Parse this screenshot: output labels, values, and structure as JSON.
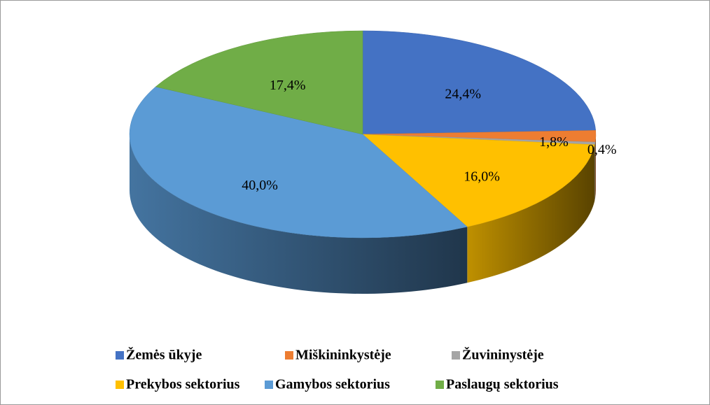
{
  "chart_data": {
    "type": "pie",
    "categories": [
      "Žemės ūkyje",
      "Miškininkystėje",
      "Žuvininystėje",
      "Prekybos sektorius",
      "Gamybos sektorius",
      "Paslaugų sektorius"
    ],
    "values": [
      24.4,
      1.8,
      0.4,
      16.0,
      40.0,
      17.4
    ],
    "value_labels": [
      "24,4%",
      "1,8%",
      "0,4%",
      "16,0%",
      "40,0%",
      "17,4%"
    ],
    "colors": [
      "#4472c4",
      "#ed7d31",
      "#a5a5a5",
      "#ffc000",
      "#5b9bd5",
      "#70ad47"
    ],
    "legend": "bottom"
  }
}
